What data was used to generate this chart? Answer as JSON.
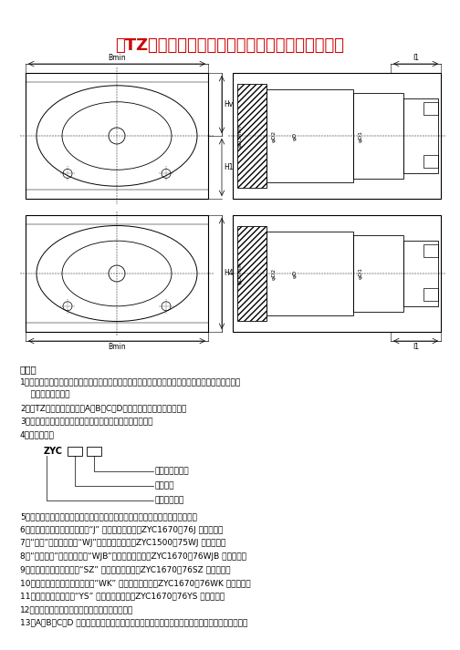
{
  "title": "「TZ」轧辊油膜轴承支承辊、轴承坐相关尺寸标注",
  "title_color": "#CC0000",
  "title_fontsize": 13,
  "bg_color": "#FFFFFF",
  "notes_header": "说明：",
  "model_line1": "轴承长径比系列",
  "model_line2": "锥套直径",
  "model_line3": "轧辊油膜轴承",
  "note1a": "1、一套轧辊油膜轴承：系指装于一根支承辊（或轧辊）上的全部油膜轴承组件，即除支承辊、轴承坐",
  "note1b": "    外的全部零部件。",
  "note2": "2、「TZ」轧辊油膜轴承分A、B、C、D四个系列，尺寸代号按上图。",
  "note3": "3、规格定义：按照轧辊油膜轴承主要件锥套的外径而定义。",
  "note4": "4、型号说明：",
  "note5": "5、与轧辊油膜轴承相关的支承辊、轴承坐其它未标注尺寸基本设计完成后提供。",
  "note6": "6、静一动压油膜轴承结构，由“J” 表示。标注示例：ZYC1670－76J 油膜轴承。",
  "note7": "7、“无键”轴承结构，由“WJ”表示。标注示例：ZYC1500－75WJ 油膜轴承。",
  "note8": "8、“无键薄壁”轴承结构，由“WJB”表示。标注示例：ZYC1670－76WJB 油膜轴承。",
  "note9": "9、双止推全对移结构，由“SZ” 表示。标注示例：ZYC1670－76SZ 油膜轴承。",
  "note10": "10、轴承运行温度监控装置，由“WK” 表示。标注示例：ZYC1670－76WK 油膜轴承。",
  "note11": "11、液压锁紧结构，由“YS” 表示。标注示例：ZYC1670－76YS 油膜轴承。",
  "note12": "12、非标准系列油膜轴承尺寸根据用户要求确定。",
  "note13": "13、A、B、C、D 系列中为典型结构图，并非固定形式，具体结构形式可根据用户要求进行设计。"
}
